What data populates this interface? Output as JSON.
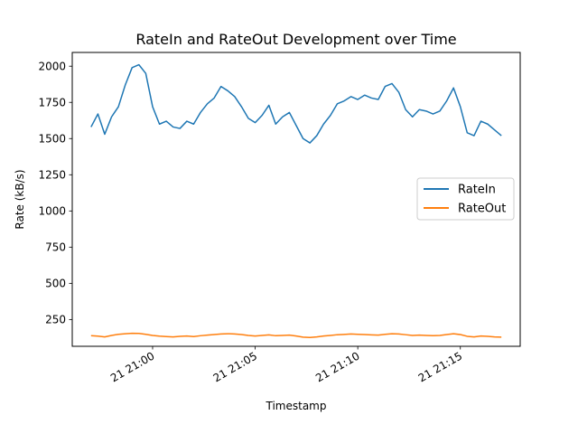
{
  "chart_data": {
    "type": "line",
    "title": "RateIn and RateOut Development over Time",
    "xlabel": "Timestamp",
    "ylabel": "Rate (kB/s)",
    "x_start": "21 20:57",
    "x_end": "21 21:17",
    "x_ticks": [
      "21 21:00",
      "21 21:05",
      "21 21:10",
      "21 21:15"
    ],
    "xlim": [
      "21 20:56:05",
      "21 21:17:55"
    ],
    "ylim": [
      65,
      2095
    ],
    "y_ticks": [
      250,
      500,
      750,
      1000,
      1250,
      1500,
      1750,
      2000
    ],
    "grid": false,
    "legend_position": "center-right",
    "series": [
      {
        "name": "RateIn",
        "color": "#1f77b4",
        "x": [
          "21 20:57:00",
          "21 20:57:20",
          "21 20:57:40",
          "21 20:58:00",
          "21 20:58:20",
          "21 20:58:40",
          "21 20:59:00",
          "21 20:59:20",
          "21 20:59:40",
          "21 21:00:00",
          "21 21:00:20",
          "21 21:00:40",
          "21 21:01:00",
          "21 21:01:20",
          "21 21:01:40",
          "21 21:02:00",
          "21 21:02:20",
          "21 21:02:40",
          "21 21:03:00",
          "21 21:03:20",
          "21 21:03:40",
          "21 21:04:00",
          "21 21:04:20",
          "21 21:04:40",
          "21 21:05:00",
          "21 21:05:20",
          "21 21:05:40",
          "21 21:06:00",
          "21 21:06:20",
          "21 21:06:40",
          "21 21:07:00",
          "21 21:07:20",
          "21 21:07:40",
          "21 21:08:00",
          "21 21:08:20",
          "21 21:08:40",
          "21 21:09:00",
          "21 21:09:20",
          "21 21:09:40",
          "21 21:10:00",
          "21 21:10:20",
          "21 21:10:40",
          "21 21:11:00",
          "21 21:11:20",
          "21 21:11:40",
          "21 21:12:00",
          "21 21:12:20",
          "21 21:12:40",
          "21 21:13:00",
          "21 21:13:20",
          "21 21:13:40",
          "21 21:14:00",
          "21 21:14:20",
          "21 21:14:40",
          "21 21:15:00",
          "21 21:15:20",
          "21 21:15:40",
          "21 21:16:00",
          "21 21:16:20",
          "21 21:16:40",
          "21 21:17:00"
        ],
        "values": [
          1580,
          1670,
          1530,
          1650,
          1720,
          1870,
          1990,
          2010,
          1950,
          1720,
          1600,
          1620,
          1580,
          1570,
          1620,
          1600,
          1680,
          1740,
          1780,
          1860,
          1830,
          1790,
          1720,
          1640,
          1610,
          1660,
          1730,
          1600,
          1650,
          1680,
          1590,
          1500,
          1470,
          1520,
          1600,
          1660,
          1740,
          1760,
          1790,
          1770,
          1800,
          1780,
          1770,
          1860,
          1880,
          1820,
          1700,
          1650,
          1700,
          1690,
          1670,
          1690,
          1760,
          1850,
          1720,
          1540,
          1520,
          1620,
          1600,
          1560,
          1520
        ]
      },
      {
        "name": "RateOut",
        "color": "#ff7f0e",
        "x": [
          "21 20:57:00",
          "21 20:57:20",
          "21 20:57:40",
          "21 20:58:00",
          "21 20:58:20",
          "21 20:58:40",
          "21 20:59:00",
          "21 20:59:20",
          "21 20:59:40",
          "21 21:00:00",
          "21 21:00:20",
          "21 21:00:40",
          "21 21:01:00",
          "21 21:01:20",
          "21 21:01:40",
          "21 21:02:00",
          "21 21:02:20",
          "21 21:02:40",
          "21 21:03:00",
          "21 21:03:20",
          "21 21:03:40",
          "21 21:04:00",
          "21 21:04:20",
          "21 21:04:40",
          "21 21:05:00",
          "21 21:05:20",
          "21 21:05:40",
          "21 21:06:00",
          "21 21:06:20",
          "21 21:06:40",
          "21 21:07:00",
          "21 21:07:20",
          "21 21:07:40",
          "21 21:08:00",
          "21 21:08:20",
          "21 21:08:40",
          "21 21:09:00",
          "21 21:09:20",
          "21 21:09:40",
          "21 21:10:00",
          "21 21:10:20",
          "21 21:10:40",
          "21 21:11:00",
          "21 21:11:20",
          "21 21:11:40",
          "21 21:12:00",
          "21 21:12:20",
          "21 21:12:40",
          "21 21:13:00",
          "21 21:13:20",
          "21 21:13:40",
          "21 21:14:00",
          "21 21:14:20",
          "21 21:14:40",
          "21 21:15:00",
          "21 21:15:20",
          "21 21:15:40",
          "21 21:16:00",
          "21 21:16:20",
          "21 21:16:40",
          "21 21:17:00"
        ],
        "values": [
          138,
          135,
          130,
          140,
          148,
          152,
          155,
          154,
          148,
          140,
          135,
          132,
          130,
          134,
          136,
          132,
          138,
          142,
          146,
          150,
          152,
          150,
          146,
          140,
          136,
          140,
          144,
          138,
          140,
          142,
          136,
          128,
          126,
          130,
          136,
          140,
          145,
          147,
          150,
          148,
          146,
          144,
          142,
          148,
          152,
          150,
          145,
          140,
          142,
          140,
          138,
          140,
          146,
          152,
          146,
          134,
          130,
          136,
          134,
          130,
          128
        ]
      }
    ]
  }
}
